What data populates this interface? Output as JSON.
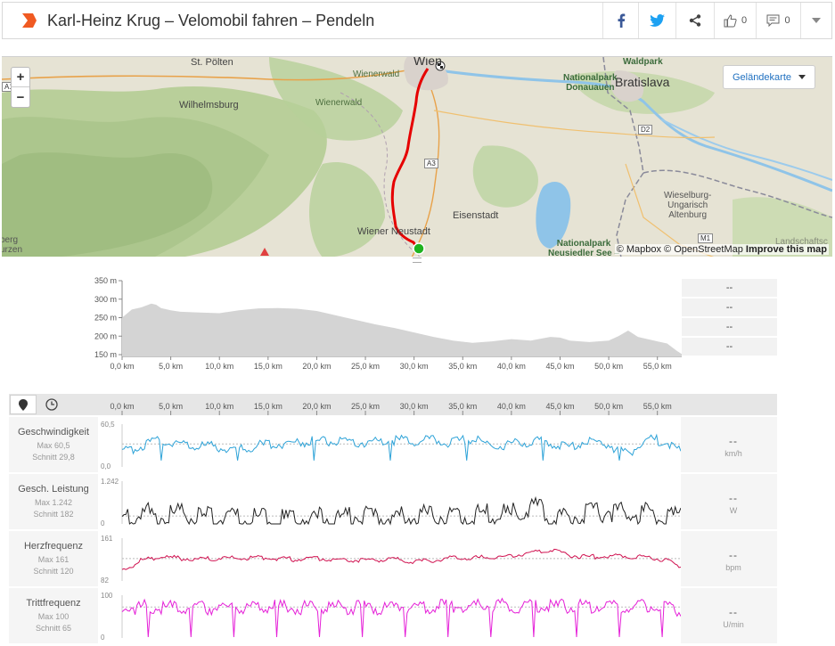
{
  "header": {
    "title": "Karl-Heinz Krug – Velomobil fahren – Pendeln",
    "likes": "0",
    "comments": "0"
  },
  "map": {
    "zoom_in": "+",
    "zoom_out": "−",
    "maptype_label": "Geländekarte",
    "attribution_prefix": "© Mapbox © OpenStreetMap",
    "attribution_link": "Improve this map",
    "places": {
      "st_poelten": "St. Pölten",
      "wien": "Wien",
      "wienerwald_1": "Wienerwald",
      "wienerwald_2": "Wienerwald",
      "wilhelmsburg": "Wilhelmsburg",
      "bratislava": "Bratislava",
      "waldpark": "Waldpark",
      "np_donauauen": "Nationalpark\nDonauauen",
      "eisenstadt": "Eisenstadt",
      "wiener_neustadt": "Wiener Neustadt",
      "np_neusiedler": "Nationalpark\nNeusiedler See –",
      "wieselburg": "Wieselburg-\nUngarisch\nAltenburg",
      "landschaft": "Landschaftsc",
      "edge_left": "berg\nurzen"
    },
    "roads": {
      "a3": "A3",
      "d2": "D2",
      "m1": "M1",
      "a1": "A1"
    }
  },
  "elevation": {
    "y_ticks": [
      "350 m",
      "300 m",
      "250 m",
      "200 m",
      "150 m"
    ],
    "x_ticks": [
      "0,0 km",
      "5,0 km",
      "10,0 km",
      "15,0 km",
      "20,0 km",
      "25,0 km",
      "30,0 km",
      "35,0 km",
      "40,0 km",
      "45,0 km",
      "50,0 km",
      "55,0 km"
    ],
    "stats": [
      "--",
      "--",
      "--",
      "--"
    ]
  },
  "toolbar": {
    "x_ticks": [
      "0,0 km",
      "5,0 km",
      "10,0 km",
      "15,0 km",
      "20,0 km",
      "25,0 km",
      "30,0 km",
      "35,0 km",
      "40,0 km",
      "45,0 km",
      "50,0 km",
      "55,0 km"
    ]
  },
  "rows": [
    {
      "name": "Geschwindigkeit",
      "max": "Max 60,5",
      "avg": "Schnitt 29,8",
      "ymax": "60,5",
      "ymin": "0,0",
      "value": "--",
      "unit": "km/h",
      "color": "#2ea3d8"
    },
    {
      "name": "Gesch. Leistung",
      "max": "Max 1.242",
      "avg": "Schnitt 182",
      "ymax": "1.242",
      "ymin": "0",
      "value": "--",
      "unit": "W",
      "color": "#222222"
    },
    {
      "name": "Herzfrequenz",
      "max": "Max 161",
      "avg": "Schnitt 120",
      "ymax": "161",
      "ymin": "82",
      "value": "--",
      "unit": "bpm",
      "color": "#d0104f"
    },
    {
      "name": "Trittfrequenz",
      "max": "Max 100",
      "avg": "Schnitt 65",
      "ymax": "100",
      "ymin": "0",
      "value": "--",
      "unit": "U/min",
      "color": "#e520d8"
    }
  ],
  "chart_data": [
    {
      "type": "area",
      "ylabel": "",
      "ylim": [
        150,
        350
      ],
      "xlim": [
        0,
        57.5
      ],
      "x": [
        0,
        1,
        2,
        3,
        3.5,
        4,
        5,
        6,
        8,
        10,
        12,
        14,
        16,
        18,
        20,
        22,
        24,
        26,
        28,
        30,
        32,
        34,
        36,
        38,
        40,
        42,
        44,
        45,
        46,
        48,
        50,
        51,
        52,
        53,
        54,
        55,
        56,
        57,
        57.5
      ],
      "y": [
        250,
        272,
        278,
        288,
        285,
        276,
        270,
        266,
        264,
        262,
        270,
        275,
        276,
        274,
        268,
        256,
        244,
        232,
        222,
        210,
        198,
        188,
        182,
        186,
        192,
        188,
        198,
        196,
        188,
        184,
        188,
        200,
        215,
        198,
        192,
        186,
        180,
        160,
        152
      ]
    },
    {
      "type": "line",
      "xlim": [
        0,
        57.5
      ],
      "ylim": [
        0,
        60.5
      ],
      "series": [
        {
          "x": [
            0,
            2,
            4,
            6,
            8,
            10,
            12,
            14,
            16,
            18,
            20,
            22,
            24,
            26,
            28,
            30,
            32,
            34,
            36,
            38,
            40,
            42,
            44,
            46,
            48,
            50,
            52,
            54,
            56,
            57.5
          ],
          "values": [
            20,
            30,
            38,
            32,
            30,
            28,
            26,
            30,
            33,
            35,
            37,
            35,
            33,
            36,
            38,
            36,
            38,
            34,
            40,
            30,
            32,
            36,
            34,
            28,
            38,
            32,
            18,
            40,
            36,
            20
          ]
        }
      ]
    },
    {
      "type": "line",
      "xlim": [
        0,
        57.5
      ],
      "ylim": [
        0,
        1242
      ],
      "series": [
        {
          "x": [
            0,
            2,
            4,
            6,
            8,
            10,
            12,
            14,
            16,
            18,
            20,
            22,
            24,
            26,
            28,
            30,
            32,
            34,
            36,
            38,
            40,
            42,
            44,
            46,
            48,
            50,
            52,
            54,
            56,
            57.5
          ],
          "values": [
            150,
            320,
            220,
            260,
            180,
            200,
            150,
            140,
            120,
            160,
            140,
            180,
            240,
            160,
            200,
            220,
            260,
            210,
            200,
            300,
            240,
            520,
            260,
            210,
            250,
            420,
            240,
            300,
            230,
            180
          ]
        }
      ]
    },
    {
      "type": "line",
      "xlim": [
        0,
        57.5
      ],
      "ylim": [
        82,
        161
      ],
      "series": [
        {
          "x": [
            0,
            2,
            4,
            6,
            8,
            10,
            12,
            14,
            16,
            18,
            20,
            22,
            24,
            26,
            28,
            30,
            32,
            34,
            36,
            38,
            40,
            42,
            44,
            46,
            48,
            50,
            52,
            54,
            56,
            57.5
          ],
          "values": [
            100,
            120,
            126,
            124,
            122,
            124,
            124,
            126,
            124,
            122,
            124,
            122,
            120,
            120,
            122,
            118,
            120,
            124,
            124,
            126,
            128,
            134,
            140,
            130,
            126,
            128,
            128,
            126,
            120,
            108
          ]
        }
      ]
    },
    {
      "type": "line",
      "xlim": [
        0,
        57.5
      ],
      "ylim": [
        0,
        100
      ],
      "series": [
        {
          "x": [
            0,
            2,
            4,
            6,
            8,
            10,
            12,
            14,
            16,
            18,
            20,
            22,
            24,
            26,
            28,
            30,
            32,
            34,
            36,
            38,
            40,
            42,
            44,
            46,
            48,
            50,
            52,
            54,
            56,
            57.5
          ],
          "values": [
            70,
            72,
            72,
            70,
            70,
            72,
            72,
            74,
            74,
            72,
            72,
            72,
            72,
            70,
            72,
            72,
            74,
            76,
            74,
            76,
            74,
            76,
            74,
            74,
            74,
            74,
            72,
            74,
            72,
            60
          ]
        }
      ]
    }
  ]
}
